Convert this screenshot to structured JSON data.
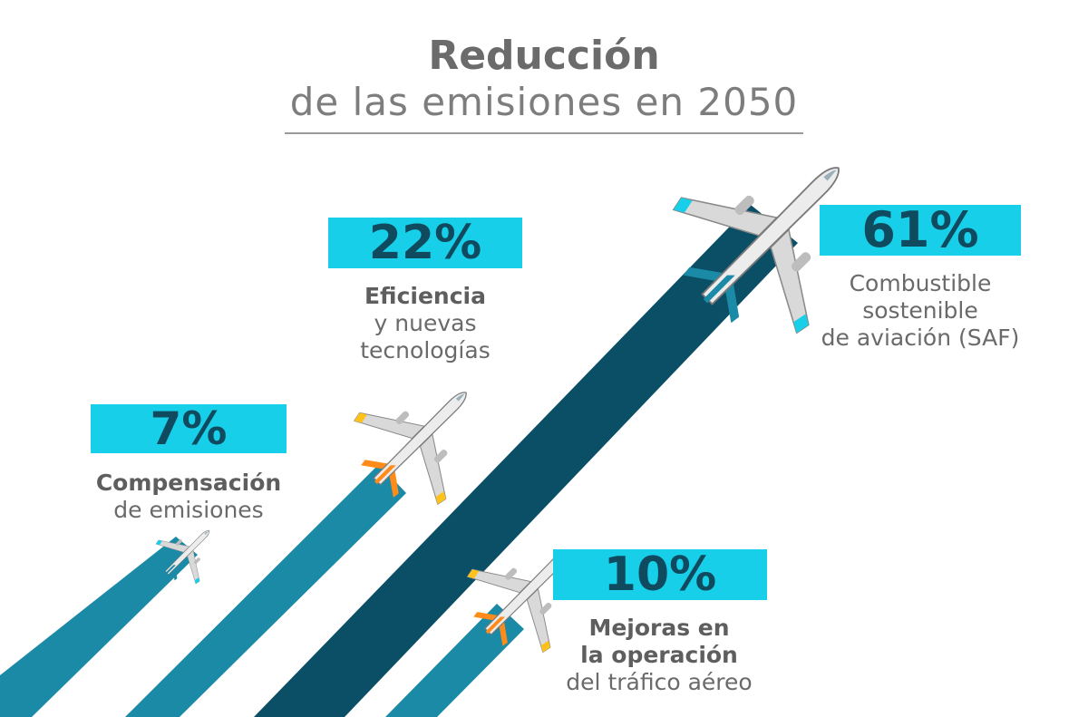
{
  "chart_data": {
    "type": "infographic",
    "title": "Reducción",
    "subtitle": "de las emisiones en 2050",
    "unit": "%",
    "categories": [
      "Compensación de emisiones",
      "Eficiencia y nuevas tecnologías",
      "Combustible sostenible de aviación (SAF)",
      "Mejoras en la operación del tráfico aéreo"
    ],
    "values": [
      7,
      22,
      61,
      10
    ],
    "items": [
      {
        "value_label": "7%",
        "lines": [
          "Compensación",
          "de emisiones"
        ],
        "bold_lines": [
          0
        ]
      },
      {
        "value_label": "22%",
        "lines": [
          "Eficiencia",
          "y nuevas",
          "tecnologías"
        ],
        "bold_lines": [
          0
        ]
      },
      {
        "value_label": "61%",
        "lines": [
          "Combustible",
          "sostenible",
          "de aviación (SAF)"
        ],
        "bold_lines": []
      },
      {
        "value_label": "10%",
        "lines": [
          "Mejoras en",
          "la operación",
          "del tráfico aéreo"
        ],
        "bold_lines": [
          0,
          1
        ]
      }
    ],
    "colors": {
      "badge": "#17cfe8",
      "badge_text": "#0f4a5f",
      "trail_light": "#1a8aa6",
      "trail_dark": "#0b4f66",
      "accent_orange": "#ff8c1a",
      "accent_yellow": "#ffc21a"
    }
  }
}
